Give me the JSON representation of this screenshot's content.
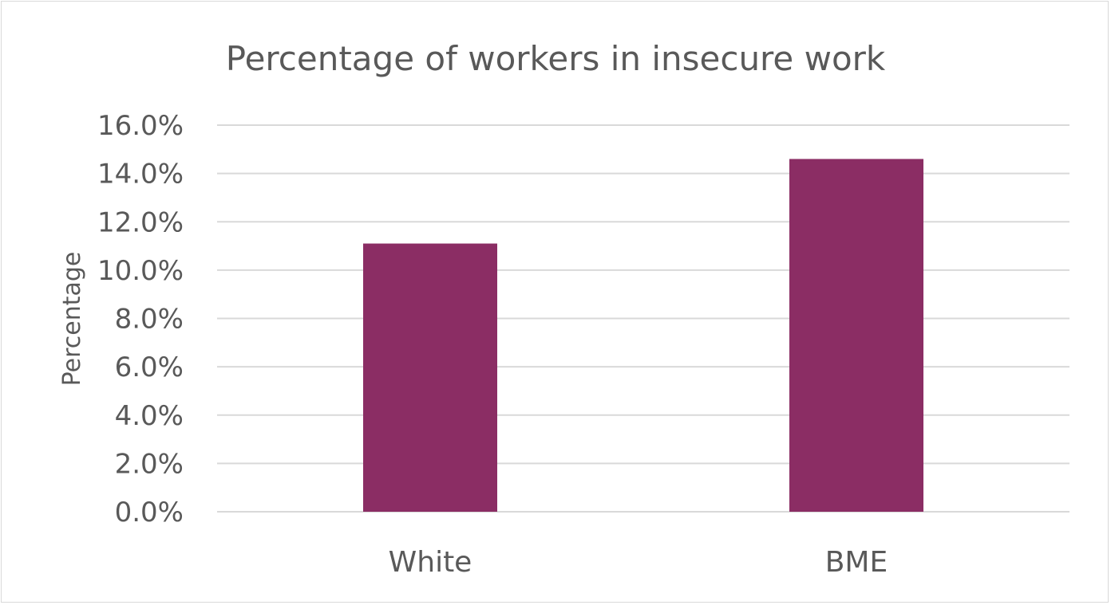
{
  "chart_data": {
    "type": "bar",
    "title": "Percentage of workers in insecure work",
    "xlabel": "",
    "ylabel": "Percentage",
    "categories": [
      "White",
      "BME"
    ],
    "values": [
      11.1,
      14.6
    ],
    "ylim": [
      0,
      16
    ],
    "yticks": [
      0,
      2,
      4,
      6,
      8,
      10,
      12,
      14,
      16
    ],
    "ytick_labels": [
      "0.0%",
      "2.0%",
      "4.0%",
      "6.0%",
      "8.0%",
      "10.0%",
      "12.0%",
      "14.0%",
      "16.0%"
    ],
    "grid": true,
    "legend": "none",
    "bar_color": "#8B2D64",
    "grid_color": "#d9d9d9",
    "text_color": "#595959"
  }
}
